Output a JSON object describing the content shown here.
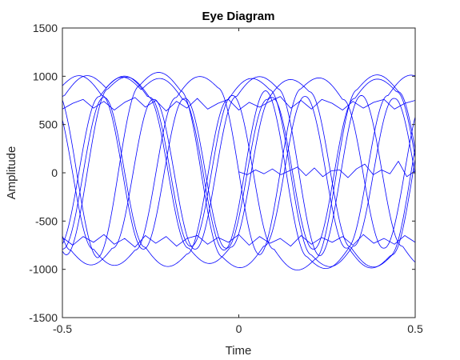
{
  "chart_data": {
    "type": "line",
    "title": "Eye Diagram",
    "xlabel": "Time",
    "ylabel": "Amplitude",
    "xlim": [
      -0.5,
      0.5
    ],
    "ylim": [
      -1500,
      1500
    ],
    "xticks": [
      -0.5,
      0,
      0.5
    ],
    "yticks": [
      -1500,
      -1000,
      -500,
      0,
      500,
      1000,
      1500
    ],
    "xtick_labels": [
      "-0.5",
      "0",
      "0.5"
    ],
    "ytick_labels": [
      "-1500",
      "-1000",
      "-500",
      "0",
      "500",
      "1000",
      "1500"
    ],
    "grid": false,
    "legend": "none",
    "line_color": "#0000ff",
    "symbol_period": 0.1176,
    "signal_amplitude": 820,
    "series": [
      {
        "bits": [
          1,
          0,
          1,
          1,
          0,
          0,
          1,
          0,
          1,
          1,
          0,
          1,
          0,
          0,
          1,
          0,
          1,
          1,
          0
        ],
        "phase": 0.15,
        "noise": [
          40,
          -60,
          80,
          30,
          -50,
          60,
          -30,
          40,
          -20,
          70,
          -40,
          30,
          60,
          -70,
          20,
          -30,
          50,
          -60,
          30
        ]
      },
      {
        "bits": [
          0,
          1,
          1,
          0,
          1,
          0,
          0,
          1,
          1,
          0,
          1,
          0,
          1,
          1,
          0,
          1,
          0,
          0,
          1
        ],
        "phase": -0.1,
        "noise": [
          -30,
          50,
          -40,
          60,
          -20,
          30,
          -70,
          40,
          20,
          -50,
          60,
          -30,
          40,
          -60,
          30,
          -40,
          20,
          50,
          -30
        ]
      },
      {
        "bits": [
          1,
          1,
          0,
          1,
          0,
          1,
          1,
          0,
          0,
          1,
          0,
          1,
          1,
          0,
          1,
          0,
          0,
          1,
          1
        ],
        "phase": 0.05,
        "noise": [
          60,
          -20,
          30,
          -50,
          40,
          -60,
          20,
          50,
          -30,
          40,
          -70,
          60,
          -20,
          30,
          -40,
          50,
          -60,
          20,
          40
        ]
      },
      {
        "bits": [
          0,
          0,
          1,
          0,
          1,
          1,
          0,
          1,
          0,
          0,
          1,
          1,
          0,
          1,
          1,
          0,
          1,
          0,
          1
        ],
        "phase": -0.2,
        "noise": [
          20,
          40,
          -60,
          30,
          -30,
          50,
          -40,
          -20,
          60,
          -50,
          30,
          -40,
          70,
          -30,
          20,
          40,
          -50,
          30,
          -20
        ]
      },
      {
        "bits": [
          1,
          0,
          0,
          1,
          1,
          0,
          1,
          1,
          0,
          1,
          0,
          0,
          1,
          0,
          0,
          1,
          1,
          0,
          1
        ],
        "phase": 0.25,
        "noise": [
          -50,
          30,
          20,
          -40,
          60,
          -30,
          50,
          -60,
          40,
          -20,
          30,
          -50,
          20,
          60,
          -40,
          30,
          -20,
          40,
          -60
        ]
      },
      {
        "bits": [
          0,
          1,
          0,
          0,
          1,
          1,
          0,
          0,
          1,
          0,
          1,
          1,
          0,
          0,
          1,
          1,
          0,
          1,
          0
        ],
        "phase": 0.0,
        "noise": [
          30,
          -40,
          50,
          -20,
          -60,
          40,
          -30,
          60,
          -50,
          20,
          -40,
          30,
          -60,
          40,
          -20,
          50,
          -30,
          -40,
          60
        ]
      },
      {
        "bits": [
          1,
          1,
          1,
          0,
          0,
          1,
          0,
          1,
          1,
          0,
          0,
          1,
          0,
          1,
          0,
          1,
          1,
          0,
          0
        ],
        "phase": -0.05,
        "noise": [
          -20,
          60,
          -30,
          40,
          50,
          -40,
          30,
          -50,
          20,
          60,
          -30,
          -40,
          50,
          -20,
          40,
          -60,
          30,
          20,
          -50
        ]
      },
      {
        "bits": [
          0,
          1,
          1,
          1,
          0,
          1,
          0,
          0,
          0,
          1,
          1,
          0,
          1,
          0,
          1,
          0,
          0,
          1,
          1
        ],
        "phase": 0.1,
        "noise": [
          50,
          -30,
          40,
          -60,
          20,
          30,
          -50,
          40,
          -40,
          30,
          50,
          -20,
          -30,
          60,
          -40,
          20,
          40,
          -50,
          30
        ]
      }
    ],
    "flat_traces": [
      {
        "level": 700,
        "x_start": -0.5,
        "x_end": 0.5,
        "noise": [
          -40,
          20,
          60,
          -30,
          40,
          -50,
          30,
          80,
          -20,
          50,
          -60,
          40,
          -30,
          70,
          -40,
          20,
          60,
          -50,
          30,
          -20,
          40,
          90,
          -30,
          50,
          -40,
          60,
          20,
          -50,
          40,
          -30,
          30,
          60,
          -40,
          20,
          50
        ]
      },
      {
        "level": -700,
        "x_start": -0.5,
        "x_end": 0.5,
        "noise": [
          30,
          -50,
          40,
          -20,
          60,
          -40,
          20,
          -70,
          50,
          -30,
          40,
          -60,
          20,
          50,
          -40,
          30,
          -20,
          60,
          -50,
          40,
          -30,
          20,
          -60,
          50,
          -40,
          30,
          -20,
          40,
          -50,
          60,
          -30,
          20,
          -40,
          50,
          -20
        ]
      },
      {
        "level": 0,
        "x_start": 0.0,
        "x_end": 0.5,
        "noise": [
          10,
          -20,
          30,
          -10,
          40,
          -20,
          20,
          60,
          -30,
          50,
          -40,
          20,
          30,
          -50,
          40,
          90,
          -20,
          30,
          -10,
          120,
          -40,
          20
        ]
      }
    ]
  }
}
